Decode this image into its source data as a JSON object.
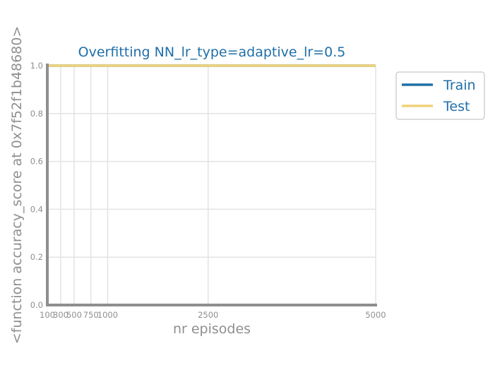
{
  "chart_data": {
    "type": "line",
    "title": "Overfitting NN_lr_type=adaptive_lr=0.5",
    "xlabel": "nr episodes",
    "ylabel": "<function accuracy_score at 0x7f52f1b48680>",
    "x": [
      100,
      300,
      500,
      750,
      1000,
      2500,
      5000
    ],
    "x_tick_labels": [
      "100",
      "300",
      "500",
      "750",
      "1000",
      "2500",
      "5000"
    ],
    "y_ticks": [
      0.0,
      0.2,
      0.4,
      0.6,
      0.8,
      1.0
    ],
    "y_tick_labels": [
      "0.0",
      "0.2",
      "0.4",
      "0.6",
      "0.8",
      "1.0"
    ],
    "xlim": [
      100,
      5000
    ],
    "ylim": [
      0.0,
      1.0
    ],
    "grid": true,
    "legend_position": "outside-right",
    "series": [
      {
        "name": "Train",
        "values": [
          1.0,
          1.0,
          1.0,
          1.0,
          1.0,
          1.0,
          1.0
        ],
        "color": "#1f6fa8"
      },
      {
        "name": "Test",
        "values": [
          1.0,
          1.0,
          1.0,
          1.0,
          1.0,
          1.0,
          1.0
        ],
        "color": "#f0d27a"
      }
    ]
  }
}
